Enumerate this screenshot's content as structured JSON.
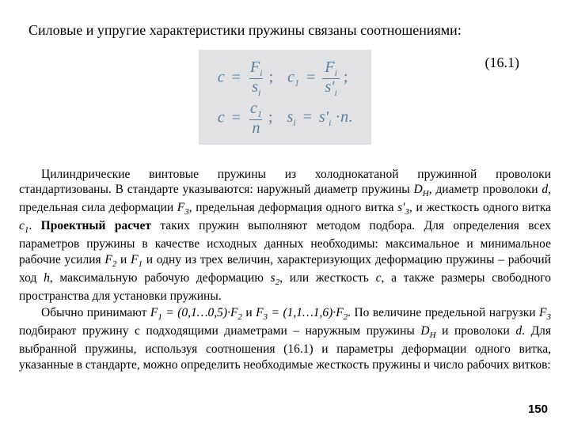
{
  "heading": "Силовые и упругие характеристики пружины связаны соотношениями:",
  "formula": {
    "background": "#e2e2e4",
    "text_color": "#577f9f",
    "line1": {
      "lhs1": "c",
      "num1": "F",
      "num1_sub": "i",
      "den1": "s",
      "den1_sub": "i",
      "sep1": ";",
      "lhs2": "c",
      "lhs2_sub": "1",
      "num2": "F",
      "num2_sub": "i",
      "den2": "s′",
      "den2_sub": "i",
      "sep2": ";"
    },
    "line2": {
      "lhs1": "c",
      "num1": "c",
      "num1_sub": "1",
      "den1": "n",
      "sep1": ";",
      "rhs_lhs": "s",
      "rhs_lhs_sub": "i",
      "rhs_eq": "=",
      "rhs_a": "s′",
      "rhs_a_sub": "i",
      "rhs_dot": "·",
      "rhs_b": "n",
      "rhs_end": "."
    },
    "number": "(16.1)"
  },
  "para1_parts": {
    "t1": "Цилиндрические винтовые пружины из холоднокатаной пружинной проволоки стандартизованы. В стандарте указываются: наружный диаметр пружины ",
    "DH": "D",
    "DH_sub": "H",
    "t2": ", диаметр проволоки ",
    "d": "d",
    "t3": ", предельная сила деформации ",
    "F3": "F",
    "F3_sub": "3",
    "t4": ", предельная деформация одного витка ",
    "s3": "s′",
    "s3_sub": "3",
    "t5": ", и жесткость одного витка ",
    "c1": "c",
    "c1_sub": "1",
    "t6": ". ",
    "bold": "Проектный расчет",
    "t7": " таких пружин выполняют методом подбора. Для определения всех параметров пружины в качестве исходных данных необходимы: максимальное и минимальное рабочие усилия ",
    "F2": "F",
    "F2_sub": "2",
    "t8": " и ",
    "F1": "F",
    "F1_sub": "1",
    "t9": " и одну из трех величин, характеризующих деформацию пружины – рабочий ход ",
    "h": "h",
    "t10": ", максимальную рабочую деформацию ",
    "s2": "s",
    "s2_sub": "2",
    "t11": ", или жесткость ",
    "c": "c",
    "t12": ", а также размеры свободного пространства для установки пружины."
  },
  "para2_parts": {
    "t1": "Обычно принимают ",
    "F1": "F",
    "F1_sub": "1",
    "t2": " = (0,1…0,5)·",
    "F2": "F",
    "F2_sub": "2",
    "t3": " и ",
    "F3": "F",
    "F3_sub": "3",
    "t4": " = (1,1…1,6)·",
    "F2b": "F",
    "F2b_sub": "2",
    "t5": ". По величине предельной нагрузки ",
    "F3b": "F",
    "F3b_sub": "3",
    "t6": " подбирают пружину с подходящими диаметрами – наружным пружины ",
    "DH": "D",
    "DH_sub": "H",
    "t7": " и проволоки ",
    "d": "d",
    "t8": ". Для выбранной пружины, используя соотношения (16.1) и параметры деформации одного витка, указанные в стандарте, можно определить необходимые жесткость пружины и число рабочих витков:"
  },
  "page_number": "150"
}
